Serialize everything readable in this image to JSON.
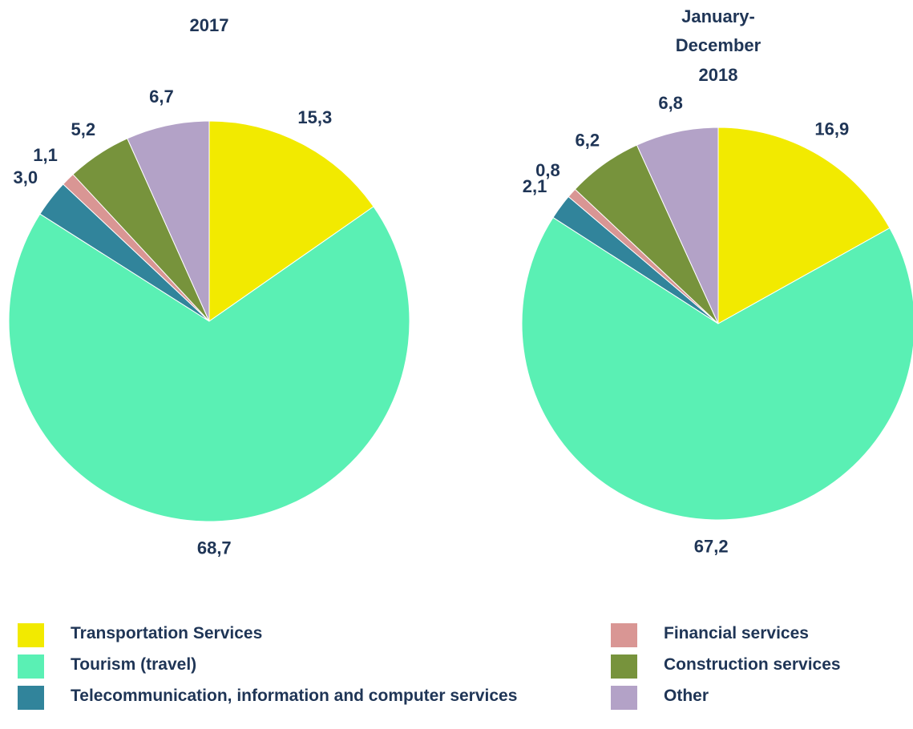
{
  "chart_data": [
    {
      "type": "pie",
      "title": "2017",
      "categories": [
        "Transportation Services",
        "Tourism (travel)",
        "Telecommunication, information and computer services",
        "Financial services",
        "Construction services",
        "Other"
      ],
      "colors": [
        "#f2ea00",
        "#5af0b4",
        "#31849b",
        "#d99694",
        "#77933c",
        "#b3a2c7"
      ],
      "values": [
        15.3,
        68.7,
        3.0,
        1.1,
        5.2,
        6.7
      ],
      "value_labels": [
        "15,3",
        "68,7",
        "3,0",
        "1,1",
        "5,2",
        "6,7"
      ]
    },
    {
      "type": "pie",
      "title": [
        "January-",
        "December",
        "2018"
      ],
      "values": [
        16.9,
        67.2,
        2.1,
        0.8,
        6.2,
        6.8
      ],
      "value_labels": [
        "16,9",
        "67,2",
        "2,1",
        "0,8",
        "6,2",
        "6,8"
      ]
    }
  ]
}
